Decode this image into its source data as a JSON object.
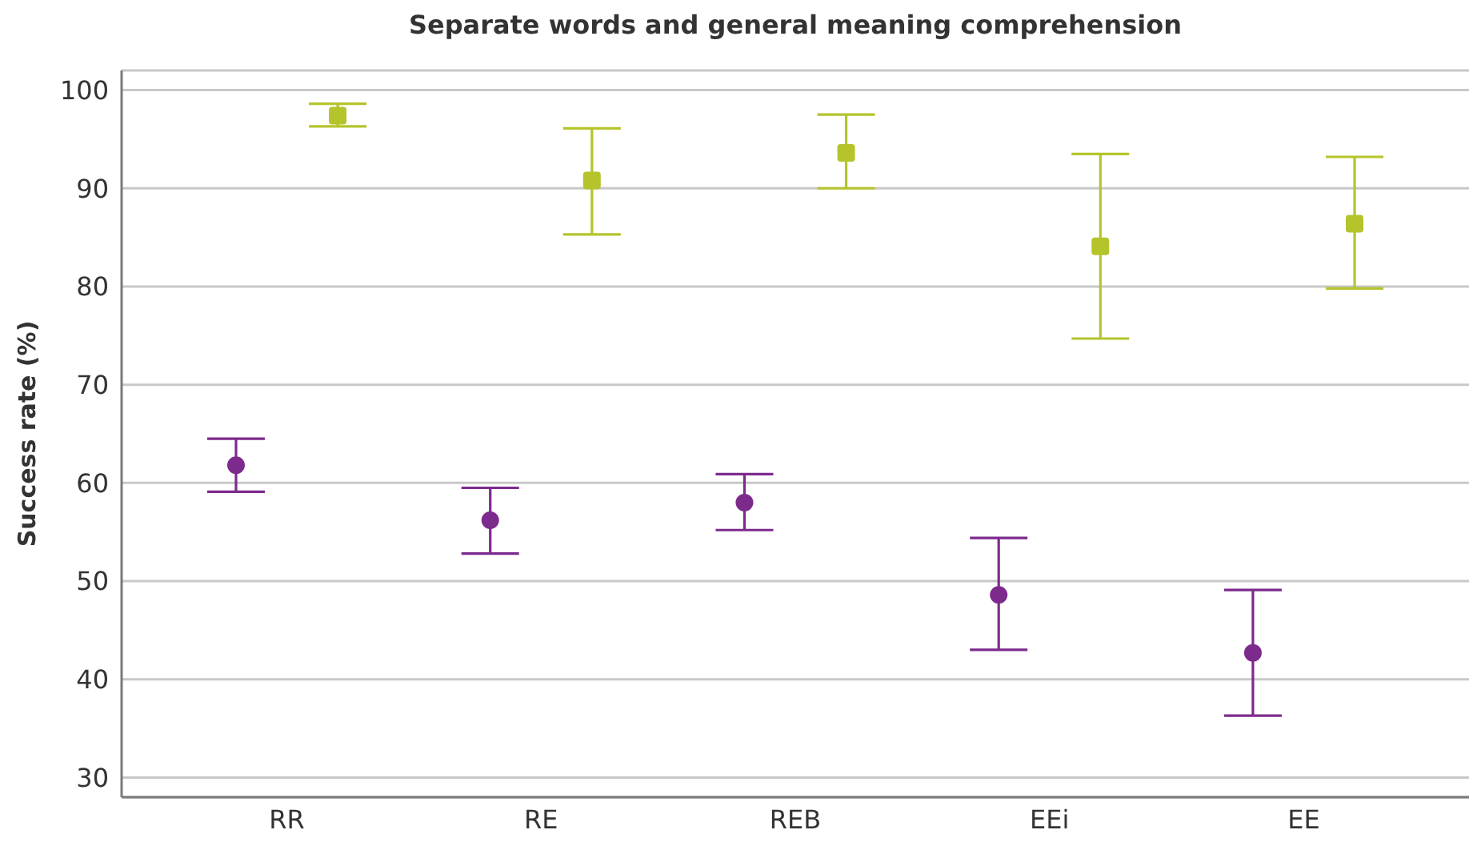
{
  "chart_data": {
    "type": "scatter",
    "title": "Separate words and general meaning comprehension",
    "ylabel": "Success rate (%)",
    "categories": [
      "RR",
      "RE",
      "REB",
      "EEi",
      "EE"
    ],
    "series": [
      {
        "color": "#7d2a8d",
        "marker": "circle",
        "values": [
          61.8,
          56.2,
          58.0,
          48.6,
          42.7
        ],
        "errors": [
          [
            59.1,
            64.5
          ],
          [
            52.8,
            59.5
          ],
          [
            55.2,
            60.9
          ],
          [
            43.0,
            54.4
          ],
          [
            36.3,
            49.1
          ]
        ]
      },
      {
        "color": "#b5c42b",
        "marker": "square",
        "values": [
          97.4,
          90.8,
          93.6,
          84.1,
          86.4
        ],
        "errors": [
          [
            96.3,
            98.6
          ],
          [
            85.3,
            96.1
          ],
          [
            90.0,
            97.5
          ],
          [
            74.7,
            93.5
          ],
          [
            79.8,
            93.2
          ]
        ]
      }
    ],
    "ylim": [
      28,
      102
    ],
    "yticks": [
      30,
      40,
      50,
      60,
      70,
      80,
      90,
      100
    ],
    "grid": "y"
  }
}
